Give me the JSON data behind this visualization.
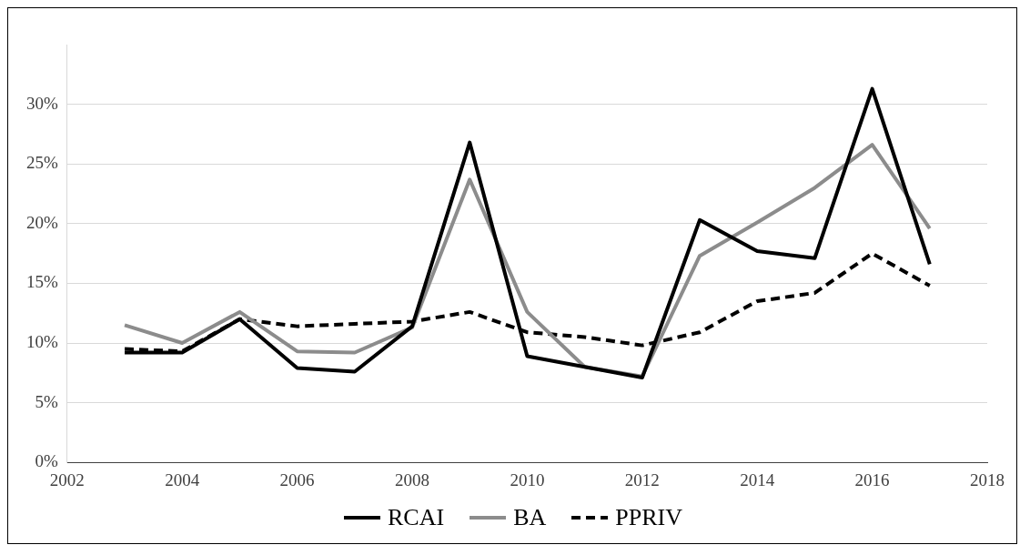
{
  "chart_data": {
    "type": "line",
    "x": [
      2003,
      2004,
      2005,
      2006,
      2007,
      2008,
      2009,
      2010,
      2011,
      2012,
      2013,
      2014,
      2015,
      2016,
      2017
    ],
    "series": [
      {
        "name": "RCAI",
        "color": "#000000",
        "line_style": "solid",
        "values": [
          9.2,
          9.2,
          12.0,
          7.9,
          7.6,
          11.4,
          26.8,
          8.9,
          8.0,
          7.1,
          20.3,
          17.7,
          17.1,
          31.3,
          16.6
        ]
      },
      {
        "name": "BA",
        "color": "#8c8c8c",
        "line_style": "solid",
        "values": [
          11.5,
          10.0,
          12.6,
          9.3,
          9.2,
          11.3,
          23.7,
          12.6,
          8.0,
          7.2,
          17.3,
          20.1,
          23.0,
          26.6,
          19.6
        ]
      },
      {
        "name": "PPRIV",
        "color": "#000000",
        "line_style": "dashed",
        "values": [
          9.5,
          9.3,
          12.0,
          11.4,
          11.6,
          11.8,
          12.6,
          10.9,
          10.5,
          9.8,
          10.9,
          13.5,
          14.2,
          17.5,
          14.8
        ]
      }
    ],
    "xlim": [
      2002,
      2018
    ],
    "xticks": [
      2002,
      2004,
      2006,
      2008,
      2010,
      2012,
      2014,
      2016,
      2018
    ],
    "ylim": [
      0,
      35
    ],
    "yticks": [
      {
        "value": 0,
        "label": "0%"
      },
      {
        "value": 5,
        "label": "5%"
      },
      {
        "value": 10,
        "label": "10%"
      },
      {
        "value": 15,
        "label": "15%"
      },
      {
        "value": 20,
        "label": "20%"
      },
      {
        "value": 25,
        "label": "25%"
      },
      {
        "value": 30,
        "label": "30%"
      }
    ],
    "grid": "y",
    "legend": "bottom",
    "marker": "none"
  }
}
